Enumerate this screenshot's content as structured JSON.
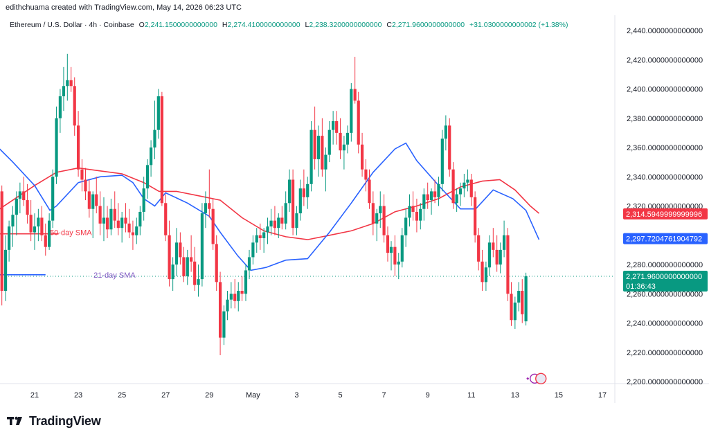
{
  "header": {
    "credit": "edithchuama created with TradingView.com, May 14, 2026 06:23 UTC"
  },
  "legend": {
    "symbol": "Ethereum / U.S. Dollar · 4h · Coinbase",
    "o_label": "O",
    "o_value": "2,241.1500000000000",
    "h_label": "H",
    "h_value": "2,274.4100000000000",
    "l_label": "L",
    "l_value": "2,238.3200000000000",
    "c_label": "C",
    "c_value": "2,271.9600000000000",
    "change": "+31.0300000000002 (+1.38%)"
  },
  "footer": {
    "brand": "TradingView"
  },
  "colors": {
    "up": "#089981",
    "down": "#f23645",
    "sma50": "#f23645",
    "sma21": "#2962ff",
    "text": "#131722",
    "axis": "#131722"
  },
  "chart_data": {
    "type": "candlestick",
    "title": "Ethereum / U.S. Dollar · 4h · Coinbase",
    "ylim": [
      2195,
      2450
    ],
    "y_ticks": [
      {
        "value": 2440,
        "label": "2,440.0000000000000"
      },
      {
        "value": 2420,
        "label": "2,420.0000000000000"
      },
      {
        "value": 2400,
        "label": "2,400.0000000000000"
      },
      {
        "value": 2380,
        "label": "2,380.0000000000000"
      },
      {
        "value": 2360,
        "label": "2,360.0000000000000"
      },
      {
        "value": 2340,
        "label": "2,340.0000000000000"
      },
      {
        "value": 2320,
        "label": "2,320.0000000000000"
      },
      {
        "value": 2280,
        "label": "2,280.0000000000000"
      },
      {
        "value": 2260,
        "label": "2,260.0000000000000"
      },
      {
        "value": 2240,
        "label": "2,240.0000000000000"
      },
      {
        "value": 2220,
        "label": "2,220.0000000000000"
      },
      {
        "value": 2200,
        "label": "2,200.0000000000000"
      }
    ],
    "x_ticks": [
      {
        "day": 21,
        "label": "21"
      },
      {
        "day": 23,
        "label": "23"
      },
      {
        "day": 25,
        "label": "25"
      },
      {
        "day": 27,
        "label": "27"
      },
      {
        "day": 29,
        "label": "29"
      },
      {
        "day": 31,
        "label": "May"
      },
      {
        "day": 33,
        "label": "3"
      },
      {
        "day": 35,
        "label": "5"
      },
      {
        "day": 37,
        "label": "7"
      },
      {
        "day": 39,
        "label": "9"
      },
      {
        "day": 41,
        "label": "11"
      },
      {
        "day": 43,
        "label": "13"
      },
      {
        "day": 45,
        "label": "15"
      },
      {
        "day": 47,
        "label": "17"
      }
    ],
    "price_badges": [
      {
        "name": "sma50-badge",
        "value": 2314.595,
        "label": "2,314.5949999999996",
        "color": "#f23645"
      },
      {
        "name": "sma21-badge",
        "value": 2297.720476190479,
        "label": "2,297.7204761904792",
        "color": "#2962ff"
      },
      {
        "name": "last-price-badge",
        "value": 2271.96,
        "label": "2,271.9600000000000",
        "sublabel": "01:36:43",
        "color": "#089981"
      }
    ],
    "sma_labels": [
      {
        "name": "sma50-label",
        "text": "50-day SMA",
        "day": 21.7,
        "value": 2302,
        "color": "#f23645"
      },
      {
        "name": "sma21-label",
        "text": "21-day SMA",
        "day": 23.7,
        "value": 2273,
        "color": "#7e57c2"
      }
    ],
    "annotation_lines": [
      {
        "name": "sma50-marker-line",
        "day0": 19.4,
        "day1": 22.1,
        "value": 2301,
        "color": "#f23645"
      },
      {
        "name": "sma21-marker-line",
        "day0": 19.4,
        "day1": 21.5,
        "value": 2273,
        "color": "#2962ff"
      }
    ],
    "last_price": 2271.96,
    "sma50": [
      [
        19.4,
        2318
      ],
      [
        20,
        2324
      ],
      [
        21,
        2334
      ],
      [
        22,
        2343
      ],
      [
        23,
        2346
      ],
      [
        24,
        2344
      ],
      [
        25,
        2342
      ],
      [
        26,
        2336
      ],
      [
        26.7,
        2330
      ],
      [
        27.5,
        2330
      ],
      [
        28.5,
        2327
      ],
      [
        29.5,
        2324
      ],
      [
        30.5,
        2312
      ],
      [
        31.5,
        2303
      ],
      [
        32.5,
        2299
      ],
      [
        33.5,
        2297
      ],
      [
        34.5,
        2300
      ],
      [
        35.5,
        2303
      ],
      [
        36.5,
        2308
      ],
      [
        37.5,
        2316
      ],
      [
        38.5,
        2320
      ],
      [
        39.5,
        2325
      ],
      [
        40.5,
        2333
      ],
      [
        41.5,
        2337
      ],
      [
        42.3,
        2338
      ],
      [
        43,
        2331
      ],
      [
        43.7,
        2320
      ],
      [
        44.1,
        2315
      ]
    ],
    "sma21": [
      [
        19.4,
        2359
      ],
      [
        20,
        2350
      ],
      [
        21,
        2334
      ],
      [
        21.7,
        2317
      ],
      [
        22,
        2320
      ],
      [
        23,
        2336
      ],
      [
        24,
        2340
      ],
      [
        25,
        2341
      ],
      [
        25.5,
        2336
      ],
      [
        26,
        2325
      ],
      [
        26.5,
        2320
      ],
      [
        27,
        2329
      ],
      [
        28,
        2322
      ],
      [
        29,
        2313
      ],
      [
        29.5,
        2302
      ],
      [
        30.3,
        2286
      ],
      [
        30.9,
        2276
      ],
      [
        31.6,
        2278
      ],
      [
        32.5,
        2283
      ],
      [
        33.5,
        2284
      ],
      [
        34.5,
        2302
      ],
      [
        35.5,
        2322
      ],
      [
        36.5,
        2343
      ],
      [
        37.5,
        2359
      ],
      [
        38,
        2363
      ],
      [
        38.5,
        2351
      ],
      [
        39.5,
        2334
      ],
      [
        40.5,
        2318
      ],
      [
        41.2,
        2318
      ],
      [
        42,
        2331
      ],
      [
        42.9,
        2325
      ],
      [
        43.5,
        2317
      ],
      [
        44.1,
        2297
      ]
    ],
    "candles": [
      [
        19.5,
        2330,
        2334,
        2252,
        2262
      ],
      [
        19.67,
        2262,
        2300,
        2255,
        2290
      ],
      [
        19.83,
        2290,
        2310,
        2282,
        2306
      ],
      [
        20.0,
        2306,
        2320,
        2292,
        2314
      ],
      [
        20.17,
        2314,
        2330,
        2300,
        2325
      ],
      [
        20.33,
        2325,
        2336,
        2315,
        2330
      ],
      [
        20.5,
        2330,
        2340,
        2320,
        2324
      ],
      [
        20.67,
        2324,
        2335,
        2308,
        2314
      ],
      [
        20.83,
        2314,
        2324,
        2296,
        2302
      ],
      [
        21.0,
        2302,
        2315,
        2290,
        2306
      ],
      [
        21.17,
        2306,
        2318,
        2296,
        2312
      ],
      [
        21.33,
        2312,
        2320,
        2296,
        2300
      ],
      [
        21.5,
        2300,
        2308,
        2286,
        2292
      ],
      [
        21.67,
        2292,
        2315,
        2290,
        2310
      ],
      [
        21.83,
        2310,
        2345,
        2305,
        2340
      ],
      [
        22.0,
        2340,
        2388,
        2335,
        2380
      ],
      [
        22.17,
        2380,
        2400,
        2370,
        2395
      ],
      [
        22.33,
        2395,
        2415,
        2385,
        2402
      ],
      [
        22.5,
        2402,
        2424,
        2392,
        2406
      ],
      [
        22.67,
        2406,
        2415,
        2398,
        2402
      ],
      [
        22.83,
        2402,
        2408,
        2368,
        2375
      ],
      [
        23.0,
        2375,
        2385,
        2340,
        2345
      ],
      [
        23.17,
        2345,
        2352,
        2330,
        2338
      ],
      [
        23.33,
        2338,
        2346,
        2324,
        2330
      ],
      [
        23.5,
        2330,
        2338,
        2312,
        2318
      ],
      [
        23.67,
        2318,
        2330,
        2298,
        2328
      ],
      [
        23.83,
        2328,
        2340,
        2315,
        2320
      ],
      [
        24.0,
        2320,
        2330,
        2300,
        2308
      ],
      [
        24.17,
        2308,
        2326,
        2296,
        2312
      ],
      [
        24.33,
        2312,
        2320,
        2298,
        2304
      ],
      [
        24.5,
        2304,
        2325,
        2300,
        2318
      ],
      [
        24.67,
        2318,
        2330,
        2305,
        2310
      ],
      [
        24.83,
        2310,
        2322,
        2300,
        2305
      ],
      [
        25.0,
        2305,
        2316,
        2295,
        2312
      ],
      [
        25.17,
        2312,
        2322,
        2302,
        2308
      ],
      [
        25.33,
        2308,
        2318,
        2298,
        2302
      ],
      [
        25.5,
        2302,
        2310,
        2290,
        2300
      ],
      [
        25.67,
        2300,
        2312,
        2294,
        2306
      ],
      [
        25.83,
        2306,
        2320,
        2300,
        2316
      ],
      [
        26.0,
        2316,
        2340,
        2310,
        2332
      ],
      [
        26.17,
        2332,
        2352,
        2325,
        2348
      ],
      [
        26.33,
        2348,
        2365,
        2340,
        2360
      ],
      [
        26.5,
        2360,
        2392,
        2352,
        2372
      ],
      [
        26.67,
        2372,
        2400,
        2366,
        2395
      ],
      [
        26.83,
        2395,
        2398,
        2320,
        2322
      ],
      [
        27.0,
        2322,
        2328,
        2296,
        2300
      ],
      [
        27.17,
        2300,
        2310,
        2265,
        2270
      ],
      [
        27.33,
        2270,
        2285,
        2262,
        2280
      ],
      [
        27.5,
        2280,
        2305,
        2272,
        2295
      ],
      [
        27.67,
        2295,
        2302,
        2280,
        2285
      ],
      [
        27.83,
        2285,
        2292,
        2268,
        2272
      ],
      [
        28.0,
        2272,
        2290,
        2266,
        2285
      ],
      [
        28.17,
        2285,
        2300,
        2275,
        2282
      ],
      [
        28.33,
        2282,
        2292,
        2262,
        2266
      ],
      [
        28.5,
        2266,
        2280,
        2258,
        2270
      ],
      [
        28.67,
        2270,
        2322,
        2265,
        2315
      ],
      [
        28.83,
        2315,
        2330,
        2305,
        2322
      ],
      [
        29.0,
        2322,
        2345,
        2312,
        2318
      ],
      [
        29.17,
        2318,
        2325,
        2290,
        2294
      ],
      [
        29.33,
        2294,
        2300,
        2262,
        2268
      ],
      [
        29.5,
        2268,
        2275,
        2218,
        2230
      ],
      [
        29.67,
        2230,
        2252,
        2225,
        2248
      ],
      [
        29.83,
        2248,
        2262,
        2242,
        2256
      ],
      [
        30.0,
        2256,
        2268,
        2250,
        2260
      ],
      [
        30.17,
        2260,
        2270,
        2250,
        2255
      ],
      [
        30.33,
        2255,
        2268,
        2248,
        2262
      ],
      [
        30.5,
        2262,
        2272,
        2255,
        2260
      ],
      [
        30.67,
        2260,
        2280,
        2255,
        2276
      ],
      [
        30.83,
        2276,
        2290,
        2270,
        2285
      ],
      [
        31.0,
        2285,
        2300,
        2280,
        2295
      ],
      [
        31.17,
        2295,
        2305,
        2288,
        2300
      ],
      [
        31.33,
        2300,
        2308,
        2290,
        2298
      ],
      [
        31.5,
        2298,
        2305,
        2288,
        2302
      ],
      [
        31.67,
        2302,
        2312,
        2294,
        2306
      ],
      [
        31.83,
        2306,
        2318,
        2300,
        2310
      ],
      [
        32.0,
        2310,
        2320,
        2300,
        2305
      ],
      [
        32.17,
        2305,
        2315,
        2298,
        2312
      ],
      [
        32.33,
        2312,
        2320,
        2304,
        2308
      ],
      [
        32.5,
        2308,
        2330,
        2304,
        2322
      ],
      [
        32.67,
        2322,
        2345,
        2316,
        2338
      ],
      [
        32.83,
        2338,
        2345,
        2300,
        2305
      ],
      [
        33.0,
        2305,
        2320,
        2300,
        2315
      ],
      [
        33.17,
        2315,
        2338,
        2310,
        2332
      ],
      [
        33.33,
        2332,
        2345,
        2320,
        2326
      ],
      [
        33.5,
        2326,
        2340,
        2318,
        2335
      ],
      [
        33.67,
        2335,
        2378,
        2330,
        2372
      ],
      [
        33.83,
        2372,
        2388,
        2345,
        2352
      ],
      [
        34.0,
        2352,
        2375,
        2340,
        2368
      ],
      [
        34.17,
        2368,
        2380,
        2340,
        2345
      ],
      [
        34.33,
        2345,
        2360,
        2330,
        2355
      ],
      [
        34.5,
        2355,
        2378,
        2350,
        2372
      ],
      [
        34.67,
        2372,
        2385,
        2362,
        2378
      ],
      [
        34.83,
        2378,
        2385,
        2362,
        2370
      ],
      [
        35.0,
        2370,
        2380,
        2352,
        2358
      ],
      [
        35.17,
        2358,
        2368,
        2345,
        2362
      ],
      [
        35.33,
        2362,
        2375,
        2356,
        2370
      ],
      [
        35.5,
        2370,
        2404,
        2364,
        2400
      ],
      [
        35.67,
        2400,
        2422,
        2390,
        2392
      ],
      [
        35.83,
        2392,
        2398,
        2356,
        2362
      ],
      [
        36.0,
        2362,
        2370,
        2340,
        2345
      ],
      [
        36.17,
        2345,
        2352,
        2330,
        2338
      ],
      [
        36.33,
        2338,
        2345,
        2318,
        2322
      ],
      [
        36.5,
        2322,
        2330,
        2300,
        2308
      ],
      [
        36.67,
        2308,
        2318,
        2296,
        2315
      ],
      [
        36.83,
        2315,
        2330,
        2305,
        2320
      ],
      [
        37.0,
        2320,
        2328,
        2295,
        2300
      ],
      [
        37.17,
        2300,
        2306,
        2282,
        2288
      ],
      [
        37.33,
        2288,
        2296,
        2276,
        2292
      ],
      [
        37.5,
        2292,
        2300,
        2272,
        2280
      ],
      [
        37.67,
        2280,
        2288,
        2270,
        2282
      ],
      [
        37.83,
        2282,
        2305,
        2278,
        2300
      ],
      [
        38.0,
        2300,
        2318,
        2292,
        2312
      ],
      [
        38.17,
        2312,
        2328,
        2306,
        2320
      ],
      [
        38.33,
        2320,
        2330,
        2310,
        2316
      ],
      [
        38.5,
        2316,
        2325,
        2302,
        2310
      ],
      [
        38.67,
        2310,
        2322,
        2304,
        2318
      ],
      [
        38.83,
        2318,
        2332,
        2310,
        2328
      ],
      [
        39.0,
        2328,
        2336,
        2318,
        2324
      ],
      [
        39.17,
        2324,
        2332,
        2314,
        2330
      ],
      [
        39.33,
        2330,
        2338,
        2322,
        2326
      ],
      [
        39.5,
        2326,
        2340,
        2320,
        2335
      ],
      [
        39.67,
        2335,
        2372,
        2330,
        2366
      ],
      [
        39.83,
        2366,
        2382,
        2358,
        2375
      ],
      [
        40.0,
        2375,
        2380,
        2340,
        2345
      ],
      [
        40.17,
        2345,
        2350,
        2318,
        2322
      ],
      [
        40.33,
        2322,
        2332,
        2316,
        2328
      ],
      [
        40.5,
        2328,
        2336,
        2320,
        2332
      ],
      [
        40.67,
        2332,
        2342,
        2326,
        2336
      ],
      [
        40.83,
        2336,
        2345,
        2330,
        2338
      ],
      [
        41.0,
        2338,
        2342,
        2320,
        2326
      ],
      [
        41.17,
        2326,
        2330,
        2295,
        2300
      ],
      [
        41.33,
        2300,
        2305,
        2276,
        2282
      ],
      [
        41.5,
        2282,
        2290,
        2262,
        2268
      ],
      [
        41.67,
        2268,
        2282,
        2262,
        2278
      ],
      [
        41.83,
        2278,
        2300,
        2272,
        2295
      ],
      [
        42.0,
        2295,
        2305,
        2285,
        2290
      ],
      [
        42.17,
        2290,
        2300,
        2275,
        2280
      ],
      [
        42.33,
        2280,
        2295,
        2274,
        2290
      ],
      [
        42.5,
        2290,
        2310,
        2285,
        2300
      ],
      [
        42.67,
        2300,
        2305,
        2255,
        2260
      ],
      [
        42.83,
        2260,
        2268,
        2238,
        2242
      ],
      [
        43.0,
        2242,
        2258,
        2236,
        2254
      ],
      [
        43.17,
        2254,
        2268,
        2248,
        2262
      ],
      [
        43.33,
        2262,
        2270,
        2240,
        2246
      ],
      [
        43.5,
        2241.15,
        2274.41,
        2238.32,
        2271.96
      ]
    ]
  }
}
